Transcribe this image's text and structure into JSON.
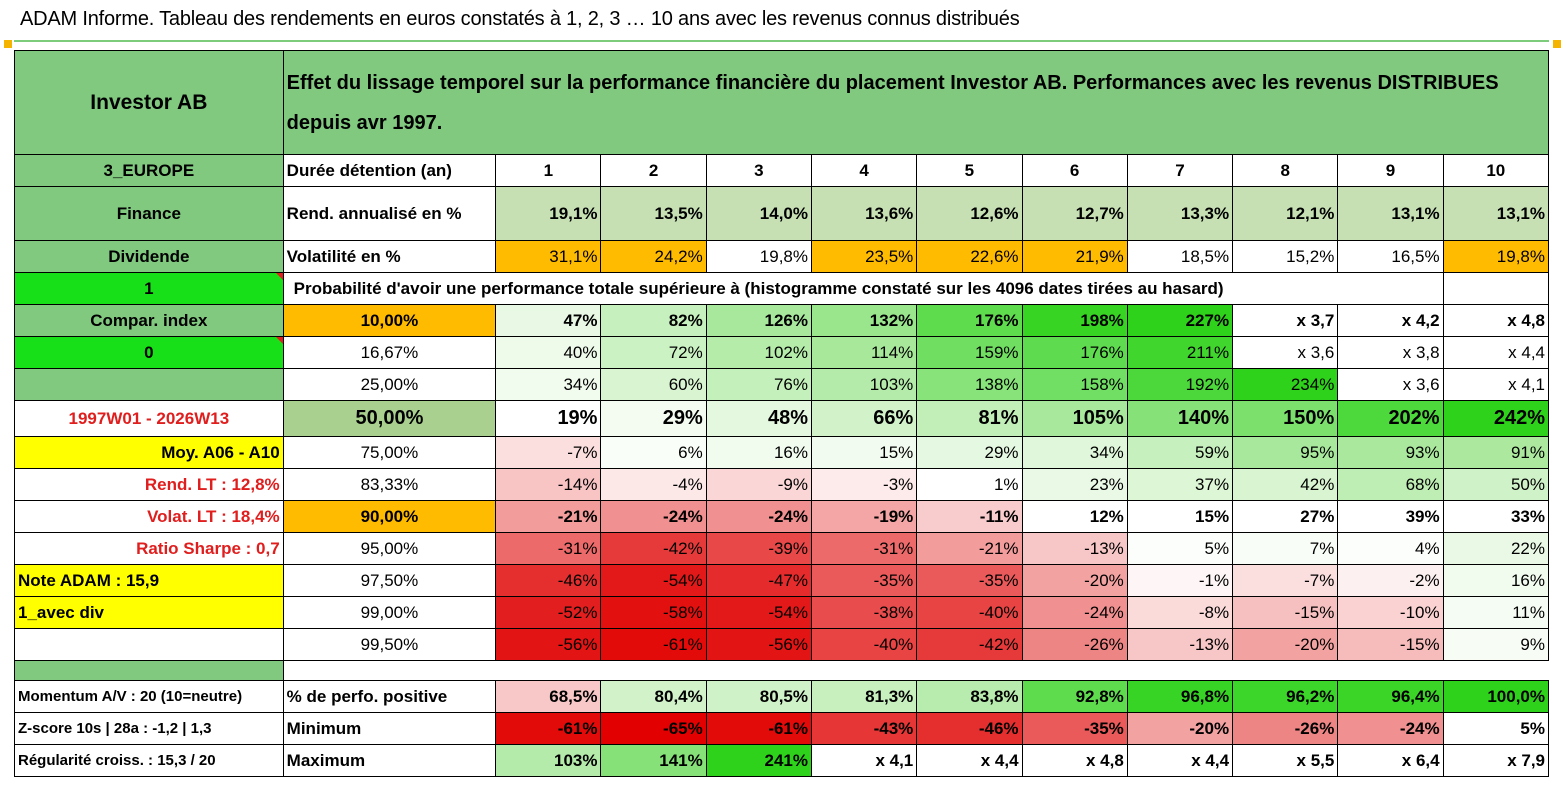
{
  "title": "ADAM Informe. Tableau des rendements en euros constatés à 1, 2, 3 … 10 ans avec les revenus connus distribués",
  "asset_name": "Investor AB",
  "header_description": "Effet du lissage temporel sur la performance financière du placement Investor AB. Performances avec les revenus DISTRIBUES depuis avr 1997.",
  "left_labels": {
    "region": "3_EUROPE",
    "sector": "Finance",
    "distribution": "Dividende",
    "flag1": "1",
    "compar_index": "Compar. index",
    "flag0": "0",
    "period": "1997W01 - 2026W13",
    "moy": "Moy. A06 - A10",
    "rend_lt": "Rend. LT :   12,8%",
    "volat_lt": "Volat. LT :   18,4%",
    "sharpe": "Ratio Sharpe :    0,7",
    "note": "Note ADAM : 15,9",
    "avec_div": "1_avec div",
    "momentum": "Momentum A/V : 20 (10=neutre)",
    "zscore": "Z-score 10s | 28a : -1,2 | 1,3",
    "regularite": "Régularité croiss. : 15,3 / 20"
  },
  "row_labels": {
    "duration": "Durée détention (an)",
    "rend": "Rend. annualisé en %",
    "vol": "Volatilité en %",
    "prob": "Probabilité d'avoir une performance totale supérieure à (histogramme constaté sur les 4096 dates tirées au hasard)",
    "pos": "% de perfo. positive",
    "min": "Minimum",
    "max": "Maximum"
  },
  "years": [
    "1",
    "2",
    "3",
    "4",
    "5",
    "6",
    "7",
    "8",
    "9",
    "10"
  ],
  "rend": [
    "19,1%",
    "13,5%",
    "14,0%",
    "13,6%",
    "12,6%",
    "12,7%",
    "13,3%",
    "12,1%",
    "13,1%",
    "13,1%"
  ],
  "vol": [
    "31,1%",
    "24,2%",
    "19,8%",
    "23,5%",
    "22,6%",
    "21,9%",
    "18,5%",
    "15,2%",
    "16,5%",
    "19,8%"
  ],
  "vol_colors": [
    "#ffbb00",
    "#ffbb00",
    "#ffffff",
    "#ffbb00",
    "#ffbb00",
    "#ffbb00",
    "#ffffff",
    "#ffffff",
    "#ffffff",
    "#ffbb00"
  ],
  "prob_rows": [
    {
      "pct": "10,00%",
      "bold": true,
      "pct_bg": "#ffbb00",
      "values": [
        "47%",
        "82%",
        "126%",
        "132%",
        "176%",
        "198%",
        "227%",
        "x 3,7",
        "x 4,2",
        "x 4,8"
      ],
      "colors": [
        "#e8f8e4",
        "#c6f0bd",
        "#a8e89c",
        "#9ae68d",
        "#5fdb4e",
        "#37d424",
        "#2fd21b",
        "#ffffff",
        "#ffffff",
        "#ffffff"
      ]
    },
    {
      "pct": "16,67%",
      "bold": false,
      "pct_bg": "#ffffff",
      "values": [
        "40%",
        "72%",
        "102%",
        "114%",
        "159%",
        "176%",
        "211%",
        "x 3,6",
        "x 3,8",
        "x 4,4"
      ],
      "colors": [
        "#eefaea",
        "#cbf2c3",
        "#b5ecaa",
        "#a8e89b",
        "#70de61",
        "#5fdb4f",
        "#40d62e",
        "#ffffff",
        "#ffffff",
        "#ffffff"
      ]
    },
    {
      "pct": "25,00%",
      "bold": false,
      "pct_bg": "#ffffff",
      "values": [
        "34%",
        "60%",
        "76%",
        "103%",
        "138%",
        "158%",
        "192%",
        "234%",
        "x 3,6",
        "x 4,1"
      ],
      "colors": [
        "#f1fbee",
        "#d8f4d1",
        "#c4f0bb",
        "#b4ebaa",
        "#87e37a",
        "#71df63",
        "#4cd83b",
        "#2fd21b",
        "#ffffff",
        "#ffffff"
      ]
    },
    {
      "pct": "50,00%",
      "bold": true,
      "big": true,
      "pct_bg": "#a9d08e",
      "values": [
        "19%",
        "29%",
        "48%",
        "66%",
        "81%",
        "105%",
        "140%",
        "150%",
        "202%",
        "242%"
      ],
      "colors": [
        "#ffffff",
        "#f4fcf2",
        "#e4f7df",
        "#d2f3ca",
        "#c2efb8",
        "#a8e89c",
        "#86e278",
        "#7ce06d",
        "#4dd83c",
        "#2fd21b"
      ]
    },
    {
      "pct": "75,00%",
      "bold": false,
      "pct_bg": "#ffffff",
      "values": [
        "-7%",
        "6%",
        "16%",
        "15%",
        "29%",
        "34%",
        "59%",
        "95%",
        "93%",
        "91%"
      ],
      "colors": [
        "#fbdede",
        "#fafef9",
        "#f1fbee",
        "#f2fbef",
        "#e5f8e1",
        "#e0f7db",
        "#c6f0bd",
        "#a8e89c",
        "#aae99d",
        "#ace99f"
      ]
    },
    {
      "pct": "83,33%",
      "bold": false,
      "pct_bg": "#ffffff",
      "values": [
        "-14%",
        "-4%",
        "-9%",
        "-3%",
        "1%",
        "23%",
        "37%",
        "42%",
        "68%",
        "50%"
      ],
      "colors": [
        "#f8c4c4",
        "#fde8e8",
        "#fad6d6",
        "#fdeaea",
        "#ffffff",
        "#eaf9e6",
        "#ddf6d6",
        "#d8f4d0",
        "#bfeeb4",
        "#d0f2c8"
      ]
    },
    {
      "pct": "90,00%",
      "bold": true,
      "pct_bg": "#ffbb00",
      "values": [
        "-21%",
        "-24%",
        "-24%",
        "-19%",
        "-11%",
        "12%",
        "15%",
        "27%",
        "39%",
        "33%"
      ],
      "colors": [
        "#f29c9c",
        "#f09090",
        "#f09090",
        "#f4a6a6",
        "#f8cccc",
        "#ffffff",
        "#ffffff",
        "#ffffff",
        "#ffffff",
        "#ffffff"
      ]
    },
    {
      "pct": "95,00%",
      "bold": false,
      "pct_bg": "#ffffff",
      "values": [
        "-31%",
        "-42%",
        "-39%",
        "-31%",
        "-21%",
        "-13%",
        "5%",
        "7%",
        "4%",
        "22%"
      ],
      "colors": [
        "#ec6a6a",
        "#e63a3a",
        "#e84848",
        "#ec6a6a",
        "#f29c9c",
        "#f7c6c6",
        "#fbfefa",
        "#f9fdf8",
        "#fcfefb",
        "#eaf9e6"
      ]
    },
    {
      "pct": "97,50%",
      "bold": false,
      "pct_bg": "#ffffff",
      "values": [
        "-46%",
        "-54%",
        "-47%",
        "-35%",
        "-35%",
        "-20%",
        "-1%",
        "-7%",
        "-2%",
        "16%"
      ],
      "colors": [
        "#e52e2e",
        "#e31818",
        "#e52b2b",
        "#ea5a5a",
        "#ea5a5a",
        "#f3a2a2",
        "#fef6f6",
        "#fbdede",
        "#fdf0f0",
        "#f1fbee"
      ]
    },
    {
      "pct": "99,00%",
      "bold": false,
      "pct_bg": "#ffffff",
      "values": [
        "-52%",
        "-58%",
        "-54%",
        "-38%",
        "-40%",
        "-24%",
        "-8%",
        "-15%",
        "-10%",
        "11%"
      ],
      "colors": [
        "#e31e1e",
        "#e31010",
        "#e31818",
        "#e84c4c",
        "#e84444",
        "#f09090",
        "#fbdada",
        "#f7c0c0",
        "#fad2d2",
        "#f5fcf3"
      ]
    },
    {
      "pct": "99,50%",
      "bold": false,
      "pct_bg": "#ffffff",
      "values": [
        "-56%",
        "-61%",
        "-56%",
        "-40%",
        "-42%",
        "-26%",
        "-13%",
        "-20%",
        "-15%",
        "9%"
      ],
      "colors": [
        "#e31414",
        "#e30a0a",
        "#e31414",
        "#e84444",
        "#e63a3a",
        "#ee8585",
        "#f7c6c6",
        "#f3a2a2",
        "#f6bcbc",
        "#f7fdf5"
      ]
    }
  ],
  "pos": [
    "68,5%",
    "80,4%",
    "80,5%",
    "81,3%",
    "83,8%",
    "92,8%",
    "96,8%",
    "96,2%",
    "96,4%",
    "100,0%"
  ],
  "pos_colors": [
    "#f8c8c8",
    "#d2f3ca",
    "#d0f2c8",
    "#c8f0bf",
    "#b8ecae",
    "#5fdb4e",
    "#38d425",
    "#3cd529",
    "#3ad527",
    "#2fd21b"
  ],
  "min": [
    "-61%",
    "-65%",
    "-61%",
    "-43%",
    "-46%",
    "-35%",
    "-20%",
    "-26%",
    "-24%",
    "5%"
  ],
  "min_colors": [
    "#e30a0a",
    "#e30000",
    "#e30a0a",
    "#e63636",
    "#e52e2e",
    "#ea5a5a",
    "#f3a2a2",
    "#ee8585",
    "#f09090",
    "#ffffff"
  ],
  "max": [
    "103%",
    "141%",
    "241%",
    "x 4,1",
    "x 4,4",
    "x 4,8",
    "x 4,4",
    "x 5,5",
    "x 6,4",
    "x 7,9"
  ],
  "max_colors": [
    "#b4ebaa",
    "#86e278",
    "#2fd21b",
    "#ffffff",
    "#ffffff",
    "#ffffff",
    "#ffffff",
    "#ffffff",
    "#ffffff",
    "#ffffff"
  ]
}
